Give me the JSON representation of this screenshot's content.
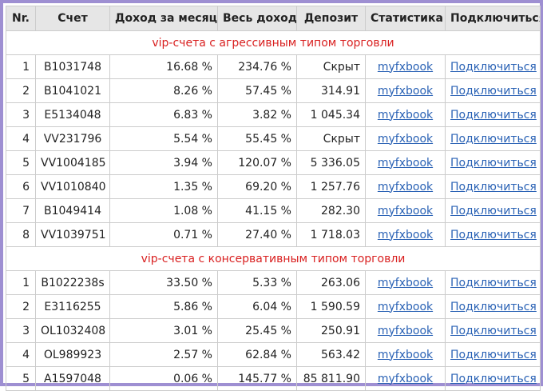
{
  "table": {
    "headers": [
      "Nr.",
      "Счет",
      "Доход за месяц",
      "Весь доход",
      "Депозит",
      "Статистика",
      "Подключиться"
    ],
    "groups": [
      {
        "title": "vip-счета с агрессивным типом торговли",
        "rows": [
          {
            "nr": "1",
            "account": "B1031748",
            "monthly": "16.68 %",
            "total": "234.76 %",
            "deposit": "Скрыт",
            "stats": "myfxbook",
            "connect": "Подключиться"
          },
          {
            "nr": "2",
            "account": "B1041021",
            "monthly": "8.26 %",
            "total": "57.45 %",
            "deposit": "314.91",
            "stats": "myfxbook",
            "connect": "Подключиться"
          },
          {
            "nr": "3",
            "account": "E5134048",
            "monthly": "6.83 %",
            "total": "3.82 %",
            "deposit": "1 045.34",
            "stats": "myfxbook",
            "connect": "Подключиться"
          },
          {
            "nr": "4",
            "account": "VV231796",
            "monthly": "5.54 %",
            "total": "55.45 %",
            "deposit": "Скрыт",
            "stats": "myfxbook",
            "connect": "Подключиться"
          },
          {
            "nr": "5",
            "account": "VV1004185",
            "monthly": "3.94 %",
            "total": "120.07 %",
            "deposit": "5 336.05",
            "stats": "myfxbook",
            "connect": "Подключиться"
          },
          {
            "nr": "6",
            "account": "VV1010840",
            "monthly": "1.35 %",
            "total": "69.20 %",
            "deposit": "1 257.76",
            "stats": "myfxbook",
            "connect": "Подключиться"
          },
          {
            "nr": "7",
            "account": "B1049414",
            "monthly": "1.08 %",
            "total": "41.15 %",
            "deposit": "282.30",
            "stats": "myfxbook",
            "connect": "Подключиться"
          },
          {
            "nr": "8",
            "account": "VV1039751",
            "monthly": "0.71 %",
            "total": "27.40 %",
            "deposit": "1 718.03",
            "stats": "myfxbook",
            "connect": "Подключиться"
          }
        ]
      },
      {
        "title": "vip-счета с консервативным типом торговли",
        "rows": [
          {
            "nr": "1",
            "account": "B1022238s",
            "monthly": "33.50 %",
            "total": "5.33 %",
            "deposit": "263.06",
            "stats": "myfxbook",
            "connect": "Подключиться"
          },
          {
            "nr": "2",
            "account": "E3116255",
            "monthly": "5.86 %",
            "total": "6.04 %",
            "deposit": "1 590.59",
            "stats": "myfxbook",
            "connect": "Подключиться"
          },
          {
            "nr": "3",
            "account": "OL1032408",
            "monthly": "3.01 %",
            "total": "25.45 %",
            "deposit": "250.91",
            "stats": "myfxbook",
            "connect": "Подключиться"
          },
          {
            "nr": "4",
            "account": "OL989923",
            "monthly": "2.57 %",
            "total": "62.84 %",
            "deposit": "563.42",
            "stats": "myfxbook",
            "connect": "Подключиться"
          },
          {
            "nr": "5",
            "account": "A1597048",
            "monthly": "0.06 %",
            "total": "145.77 %",
            "deposit": "85 811.90",
            "stats": "myfxbook",
            "connect": "Подключиться"
          }
        ]
      }
    ]
  }
}
